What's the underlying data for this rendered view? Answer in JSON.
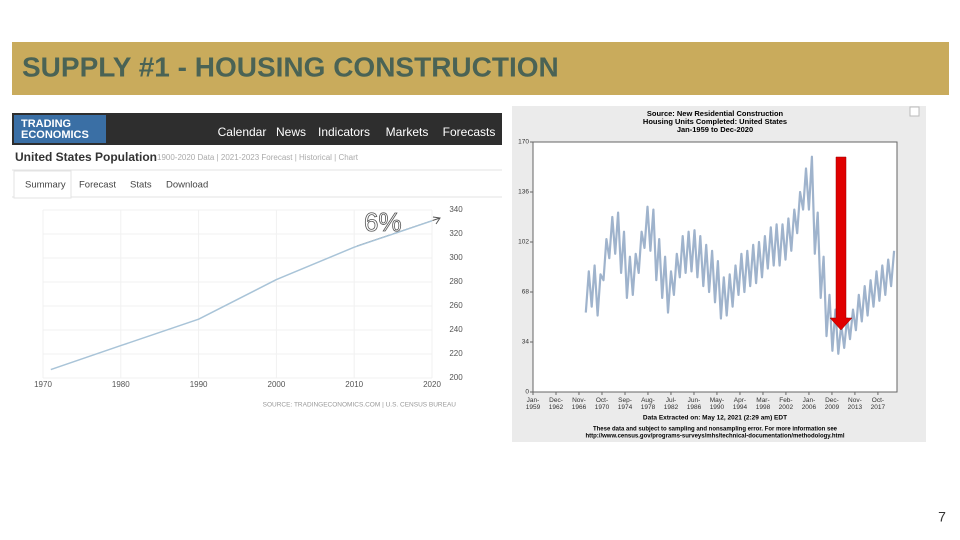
{
  "slide": {
    "title": "SUPPLY #1 - HOUSING CONSTRUCTION",
    "page_number": "7"
  },
  "trading_economics": {
    "logo": [
      "TRADING",
      "ECONOMICS"
    ],
    "nav": [
      "Calendar",
      "News",
      "Indicators",
      "Markets",
      "Forecasts"
    ],
    "page_title": "United States Population",
    "breadcrumb": "1900-2020 Data | 2021-2023 Forecast | Historical | Chart",
    "tabs": [
      "Summary",
      "Forecast",
      "Stats",
      "Download"
    ]
  },
  "chart_data": [
    {
      "type": "line",
      "color": "#a9c4d8",
      "grid": true,
      "x": [
        1971,
        1980,
        1990,
        2000,
        2010,
        2020
      ],
      "values": [
        207,
        227,
        249,
        282,
        309,
        331
      ],
      "xlim": [
        1970,
        2020
      ],
      "xticks": [
        1970,
        1980,
        1990,
        2000,
        2010,
        2020
      ],
      "ylim": [
        200,
        340
      ],
      "yticks": [
        200,
        220,
        240,
        260,
        280,
        300,
        320,
        340
      ],
      "annotation": "6%",
      "source": "SOURCE: TRADINGECONOMICS.COM | U.S. CENSUS BUREAU"
    },
    {
      "type": "line",
      "color": "#9fb3cc",
      "grid": false,
      "title": [
        "Source: New Residential Construction",
        "Housing Units Completed: United States",
        "Jan-1959 to Dec-2020"
      ],
      "subtitle": "Data Extracted on: May 12, 2021 (2:29 am) EDT",
      "footnotes": [
        "These data and subject to sampling and nonsampling error. For more information see",
        "http://www.census.gov/programs-surveys/mhs/technical-documentation/methodology.html"
      ],
      "x": [
        1968,
        1968.5,
        1969,
        1969.5,
        1970,
        1970.5,
        1971,
        1971.5,
        1972,
        1972.5,
        1973,
        1973.5,
        1974,
        1974.5,
        1975,
        1975.5,
        1976,
        1976.5,
        1977,
        1977.5,
        1978,
        1978.5,
        1979,
        1979.5,
        1980,
        1980.5,
        1981,
        1981.5,
        1982,
        1982.5,
        1983,
        1983.5,
        1984,
        1984.5,
        1985,
        1985.5,
        1986,
        1986.5,
        1987,
        1987.5,
        1988,
        1988.5,
        1989,
        1989.5,
        1990,
        1990.5,
        1991,
        1991.5,
        1992,
        1992.5,
        1993,
        1993.5,
        1994,
        1994.5,
        1995,
        1995.5,
        1996,
        1996.5,
        1997,
        1997.5,
        1998,
        1998.5,
        1999,
        1999.5,
        2000,
        2000.5,
        2001,
        2001.5,
        2002,
        2002.5,
        2003,
        2003.5,
        2004,
        2004.5,
        2005,
        2005.5,
        2006,
        2006.5,
        2007,
        2007.5,
        2008,
        2008.5,
        2009,
        2009.5,
        2010,
        2010.5,
        2011,
        2011.5,
        2012,
        2012.5,
        2013,
        2013.5,
        2014,
        2014.5,
        2015,
        2015.5,
        2016,
        2016.5,
        2017,
        2017.5,
        2018,
        2018.5,
        2019,
        2019.5,
        2020,
        2020.5
      ],
      "values": [
        54,
        82,
        58,
        86,
        52,
        80,
        76,
        104,
        91,
        119,
        94,
        122,
        81,
        109,
        64,
        92,
        66,
        94,
        81,
        109,
        98,
        126,
        96,
        124,
        76,
        104,
        64,
        92,
        54,
        82,
        66,
        94,
        78,
        106,
        81,
        109,
        82,
        110,
        78,
        106,
        72,
        100,
        68,
        96,
        61,
        89,
        50,
        78,
        52,
        80,
        58,
        86,
        66,
        94,
        68,
        96,
        72,
        100,
        74,
        102,
        78,
        106,
        84,
        112,
        86,
        114,
        86,
        114,
        90,
        118,
        96,
        124,
        108,
        136,
        124,
        152,
        124,
        160,
        94,
        122,
        64,
        92,
        38,
        66,
        28,
        56,
        26,
        46,
        30,
        50,
        36,
        56,
        42,
        66,
        48,
        72,
        52,
        76,
        58,
        82,
        62,
        86,
        66,
        90,
        72,
        96
      ],
      "xlim": [
        1959,
        2021
      ],
      "xticks": [
        {
          "value": 1959.0,
          "label": "Jan-1959"
        },
        {
          "value": 1962.92,
          "label": "Dec-1962"
        },
        {
          "value": 1966.83,
          "label": "Nov-1966"
        },
        {
          "value": 1970.75,
          "label": "Oct-1970"
        },
        {
          "value": 1974.67,
          "label": "Sep-1974"
        },
        {
          "value": 1978.58,
          "label": "Aug-1978"
        },
        {
          "value": 1982.5,
          "label": "Jul-1982"
        },
        {
          "value": 1986.42,
          "label": "Jun-1986"
        },
        {
          "value": 1990.33,
          "label": "May-1990"
        },
        {
          "value": 1994.25,
          "label": "Apr-1994"
        },
        {
          "value": 1998.17,
          "label": "Mar-1998"
        },
        {
          "value": 2002.08,
          "label": "Feb-2002"
        },
        {
          "value": 2006.0,
          "label": "Jan-2006"
        },
        {
          "value": 2009.92,
          "label": "Dec-2009"
        },
        {
          "value": 2013.83,
          "label": "Nov-2013"
        },
        {
          "value": 2017.75,
          "label": "Oct-2017"
        }
      ],
      "ylim": [
        0,
        170
      ],
      "yticks": [
        0,
        34,
        68,
        102,
        136,
        170
      ]
    }
  ]
}
